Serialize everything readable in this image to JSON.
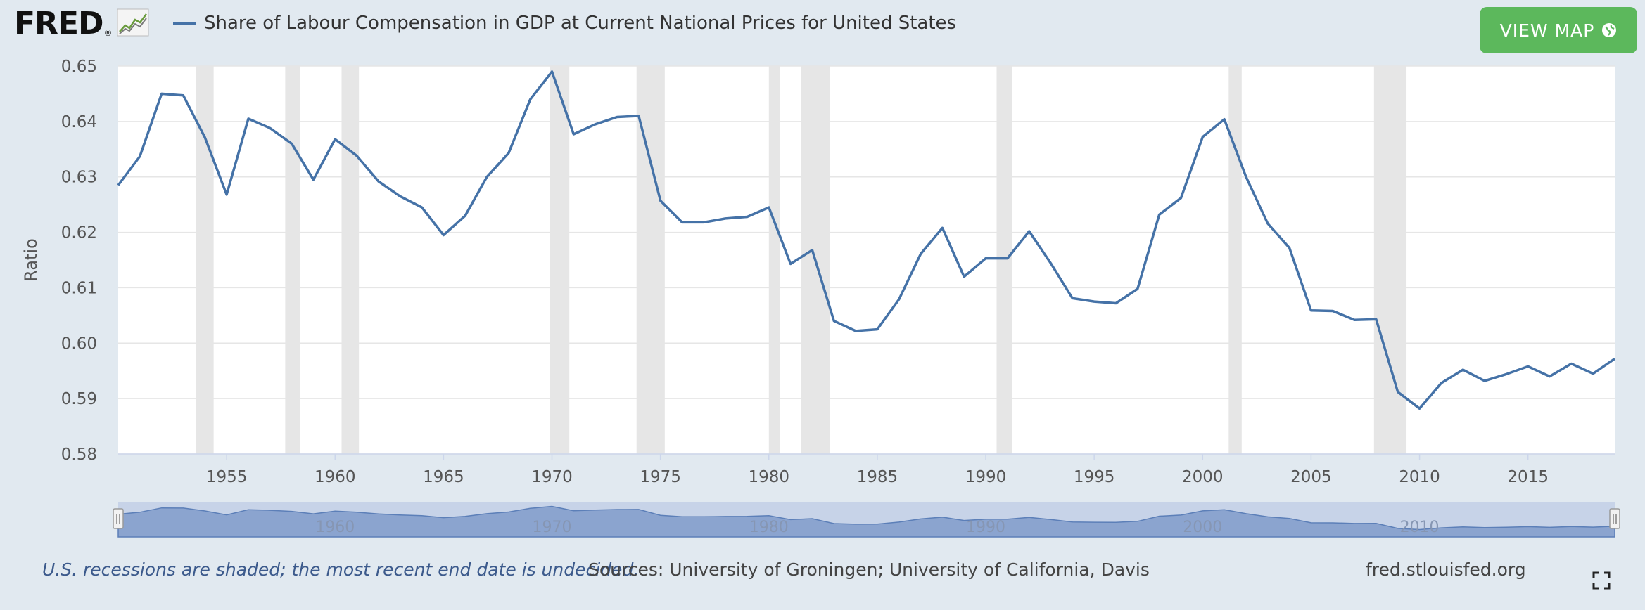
{
  "brand": {
    "logo_text": "FRED",
    "registered_mark": "®"
  },
  "header": {
    "title": "Share of Labour Compensation in GDP at Current National Prices for United States",
    "view_map_label": "VIEW MAP",
    "series_color": "#4572a7",
    "button_color": "#5cb85c"
  },
  "footer": {
    "recession_note": "U.S. recessions are shaded; the most recent end date is undecided.",
    "sources": "Sources: University of Groningen; University of California, Davis",
    "site": "fred.stlouisfed.org"
  },
  "icons": {
    "logo_graph": "fred-graph-icon",
    "view_map": "globe-icon",
    "fullscreen": "fullscreen-icon"
  },
  "chart_data": {
    "type": "line",
    "ylabel": "Ratio",
    "xlabel": "",
    "ylim": [
      0.58,
      0.65
    ],
    "xlim": [
      1950,
      2019
    ],
    "grid": true,
    "yticks": [
      "0.58",
      "0.59",
      "0.60",
      "0.61",
      "0.62",
      "0.63",
      "0.64",
      "0.65"
    ],
    "xticks": [
      "1955",
      "1960",
      "1965",
      "1970",
      "1975",
      "1980",
      "1985",
      "1990",
      "1995",
      "2000",
      "2005",
      "2010",
      "2015"
    ],
    "navigator_ticks": [
      "1960",
      "1970",
      "1980",
      "1990",
      "2000",
      "2010"
    ],
    "series": [
      {
        "x": [
          1950,
          1951,
          1952,
          1953,
          1954,
          1955,
          1956,
          1957,
          1958,
          1959,
          1960,
          1961,
          1962,
          1963,
          1964,
          1965,
          1966,
          1967,
          1968,
          1969,
          1970,
          1971,
          1972,
          1973,
          1974,
          1975,
          1976,
          1977,
          1978,
          1979,
          1980,
          1981,
          1982,
          1983,
          1984,
          1985,
          1986,
          1987,
          1988,
          1989,
          1990,
          1991,
          1992,
          1993,
          1994,
          1995,
          1996,
          1997,
          1998,
          1999,
          2000,
          2001,
          2002,
          2003,
          2004,
          2005,
          2006,
          2007,
          2008,
          2009,
          2010,
          2011,
          2012,
          2013,
          2014,
          2015,
          2016,
          2017,
          2018,
          2019
        ],
        "y": [
          0.6285,
          0.6337,
          0.645,
          0.6447,
          0.6371,
          0.6268,
          0.6405,
          0.6388,
          0.636,
          0.6295,
          0.6368,
          0.6338,
          0.6292,
          0.6265,
          0.6245,
          0.6195,
          0.623,
          0.63,
          0.6343,
          0.644,
          0.649,
          0.6377,
          0.6395,
          0.6408,
          0.641,
          0.6257,
          0.6218,
          0.6218,
          0.6225,
          0.6228,
          0.6245,
          0.6143,
          0.6168,
          0.604,
          0.6022,
          0.6025,
          0.6079,
          0.6161,
          0.6208,
          0.612,
          0.6153,
          0.6153,
          0.6202,
          0.6144,
          0.6081,
          0.6075,
          0.6072,
          0.6098,
          0.6232,
          0.6262,
          0.6372,
          0.6404,
          0.63,
          0.6216,
          0.6172,
          0.6059,
          0.6058,
          0.6042,
          0.6043,
          0.5912,
          0.5882,
          0.5928,
          0.5952,
          0.5932,
          0.5944,
          0.5958,
          0.594,
          0.5963,
          0.5945,
          0.5972
        ]
      }
    ],
    "recessions": [
      [
        1953.6,
        1954.4
      ],
      [
        1957.7,
        1958.4
      ],
      [
        1960.3,
        1961.1
      ],
      [
        1969.9,
        1970.8
      ],
      [
        1973.9,
        1975.2
      ],
      [
        1980.0,
        1980.5
      ],
      [
        1981.5,
        1982.8
      ],
      [
        1990.5,
        1991.2
      ],
      [
        2001.2,
        2001.8
      ],
      [
        2007.9,
        2009.4
      ]
    ]
  }
}
